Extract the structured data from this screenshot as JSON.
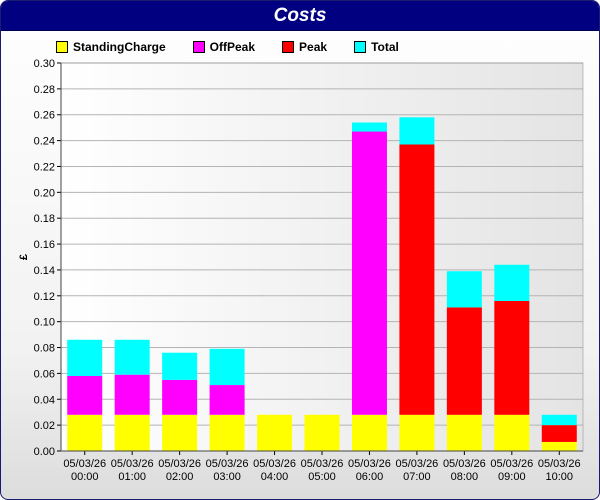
{
  "chart_data": {
    "type": "bar",
    "stacked": true,
    "title": "Costs",
    "xlabel": "",
    "ylabel": "£",
    "ylim": [
      0,
      0.3
    ],
    "yticks": [
      "0.00",
      "0.02",
      "0.04",
      "0.06",
      "0.08",
      "0.10",
      "0.12",
      "0.14",
      "0.16",
      "0.18",
      "0.20",
      "0.22",
      "0.24",
      "0.26",
      "0.28",
      "0.30"
    ],
    "grid": true,
    "legend_position": "top-left",
    "categories": [
      [
        "05/03/26",
        "00:00"
      ],
      [
        "05/03/26",
        "01:00"
      ],
      [
        "05/03/26",
        "02:00"
      ],
      [
        "05/03/26",
        "03:00"
      ],
      [
        "05/03/26",
        "04:00"
      ],
      [
        "05/03/26",
        "05:00"
      ],
      [
        "05/03/26",
        "06:00"
      ],
      [
        "05/03/26",
        "07:00"
      ],
      [
        "05/03/26",
        "08:00"
      ],
      [
        "05/03/26",
        "09:00"
      ],
      [
        "05/03/26",
        "10:00"
      ]
    ],
    "series": [
      {
        "name": "StandingCharge",
        "color": "#ffff00",
        "values": [
          0.028,
          0.028,
          0.028,
          0.028,
          0.028,
          0.028,
          0.028,
          0.028,
          0.028,
          0.028,
          0.007
        ]
      },
      {
        "name": "OffPeak",
        "color": "#ff00ff",
        "values": [
          0.03,
          0.031,
          0.027,
          0.023,
          0,
          0,
          0.219,
          0,
          0,
          0,
          0
        ]
      },
      {
        "name": "Peak",
        "color": "#ff0000",
        "values": [
          0,
          0,
          0,
          0,
          0,
          0,
          0,
          0.209,
          0.083,
          0.088,
          0.013
        ]
      },
      {
        "name": "Total",
        "color": "#00ffff",
        "values": [
          0.028,
          0.027,
          0.021,
          0.028,
          0,
          0,
          0.007,
          0.021,
          0.028,
          0.028,
          0.008
        ]
      }
    ]
  }
}
